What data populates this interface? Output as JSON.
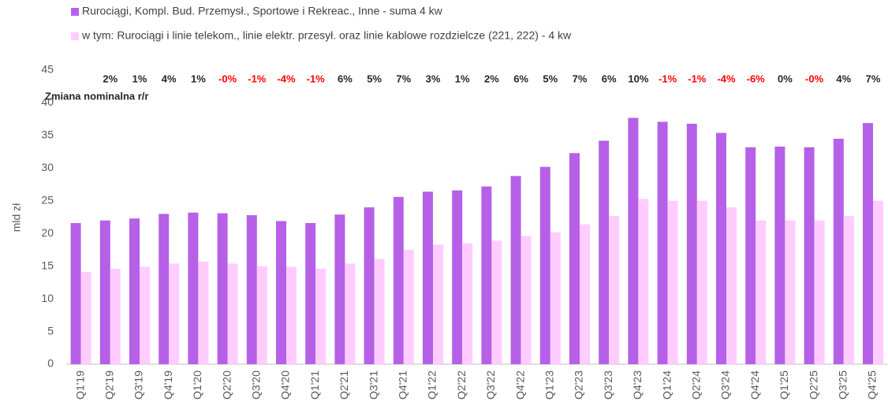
{
  "chart_data": {
    "type": "bar",
    "y_label": "mld zł",
    "annotation": "Zmiana nominalna r/r",
    "categories": [
      "Q1'19",
      "Q2'19",
      "Q3'19",
      "Q4'19",
      "Q1'20",
      "Q2'20",
      "Q3'20",
      "Q4'20",
      "Q1'21",
      "Q2'21",
      "Q3'21",
      "Q4'21",
      "Q1'22",
      "Q2'22",
      "Q3'22",
      "Q4'22",
      "Q1'23",
      "Q2'23",
      "Q3'23",
      "Q4'23",
      "Q1'24",
      "Q2'24",
      "Q3'24",
      "Q4'24",
      "Q1'25",
      "Q2'25",
      "Q3'25",
      "Q4'25"
    ],
    "series": [
      {
        "name": "Rurociągi, Kompl. Bud. Przemysł., Sportowe i Rekreac., Inne - suma 4 kw",
        "color": "#b660e8",
        "values": [
          21.6,
          22.0,
          22.3,
          23.0,
          23.2,
          23.1,
          22.8,
          21.9,
          21.6,
          22.9,
          24.0,
          25.6,
          26.4,
          26.6,
          27.2,
          28.8,
          30.2,
          32.3,
          34.2,
          37.7,
          37.1,
          36.8,
          35.4,
          33.2,
          33.3,
          33.2,
          34.5,
          36.9
        ]
      },
      {
        "name": "w tym: Rurociągi i linie telekom., linie elektr. przesył. oraz linie kablowe rozdzielcze (221, 222) - 4 kw",
        "color": "#ffccff",
        "values": [
          14.1,
          14.6,
          14.9,
          15.4,
          15.7,
          15.4,
          15.0,
          14.9,
          14.6,
          15.4,
          16.1,
          17.5,
          18.3,
          18.5,
          18.9,
          19.6,
          20.2,
          21.4,
          22.7,
          25.3,
          25.0,
          25.0,
          24.0,
          22.0,
          22.0,
          22.0,
          22.7,
          25.0
        ]
      }
    ],
    "growth_labels": [
      null,
      "2%",
      "1%",
      "4%",
      "1%",
      "-0%",
      "-1%",
      "-4%",
      "-1%",
      "6%",
      "5%",
      "7%",
      "3%",
      "1%",
      "2%",
      "6%",
      "5%",
      "7%",
      "6%",
      "10%",
      "-1%",
      "-1%",
      "-4%",
      "-6%",
      "0%",
      "-0%",
      "4%",
      "7%"
    ],
    "negative_color": "#ff0000",
    "ylim": [
      0,
      45
    ],
    "yticks": [
      0,
      5,
      10,
      15,
      20,
      25,
      30,
      35,
      40,
      45
    ],
    "grid": false
  }
}
